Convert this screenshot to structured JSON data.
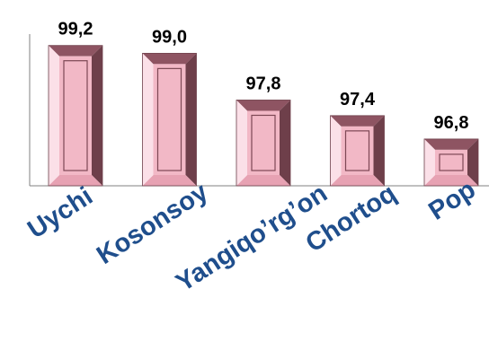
{
  "chart_data": {
    "type": "bar",
    "title": "",
    "xlabel": "",
    "ylabel": "",
    "categories": [
      "Uychi",
      "Kosonsoy",
      "Yangiqo’rg’on",
      "Chortoq",
      "Pop"
    ],
    "values": [
      99.2,
      99.0,
      97.8,
      97.4,
      96.8
    ],
    "value_labels": [
      "99,2",
      "99,0",
      "97,8",
      "97,4",
      "96,8"
    ],
    "ylim": [
      95.6,
      99.4
    ],
    "grid": false,
    "legend": "none",
    "colors": {
      "bar_face": "#f2b8c6",
      "bar_light": "#fbe0e8",
      "bar_mid": "#e7a2b3",
      "bar_dark": "#8e5462",
      "bar_darker": "#6e3f4a",
      "inner_border": "#7d4855",
      "category_text": "#1f4e8c",
      "value_text": "#000000",
      "axis": "#808080"
    }
  }
}
